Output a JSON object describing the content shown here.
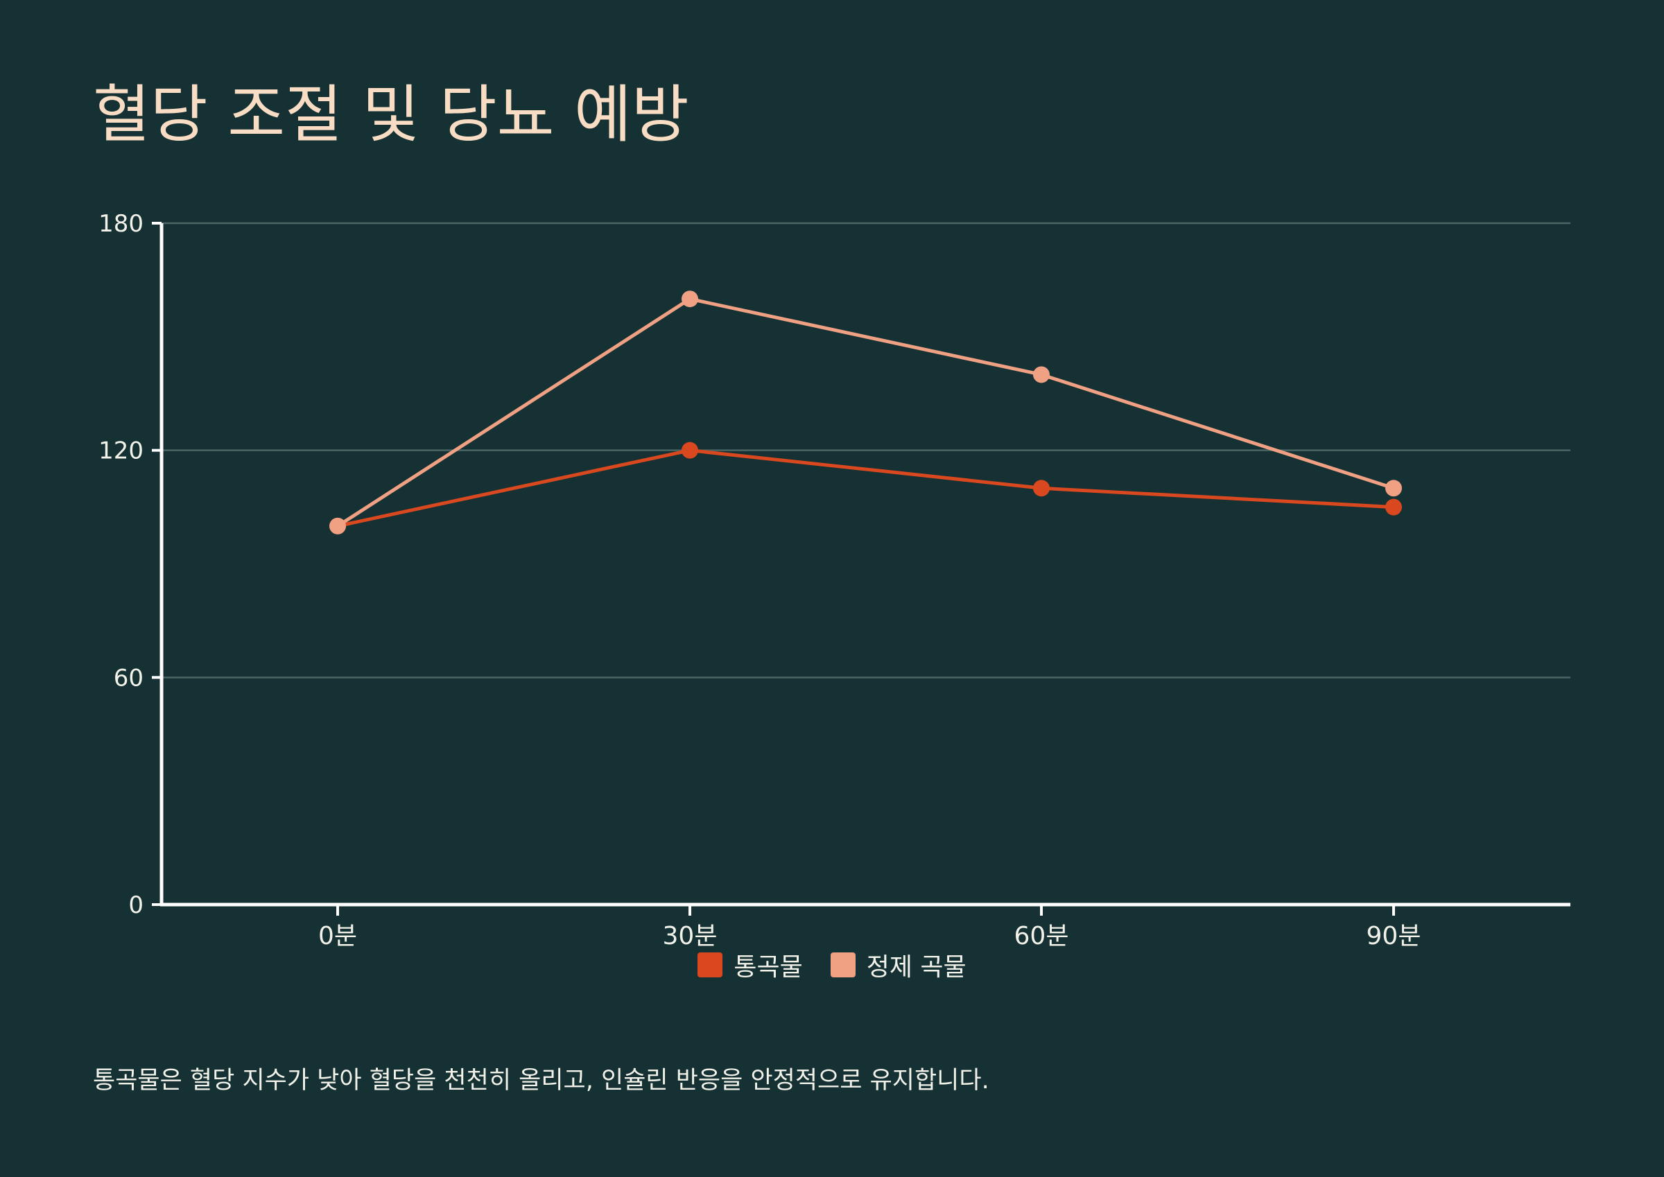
{
  "title": "혈당 조절 및 당뇨 예방",
  "caption": "통곡물은 혈당 지수가 낮아 혈당을 천천히 올리고, 인슐린 반응을 안정적으로 유지합니다.",
  "colors": {
    "background": "#153133",
    "whole_grain": "#d9481f",
    "refined_grain": "#f0a083",
    "axis": "#ffffff",
    "grid": "#4a6563",
    "title": "#f9dcc4"
  },
  "chart_data": {
    "type": "line",
    "categories": [
      "0분",
      "30분",
      "60분",
      "90분"
    ],
    "series": [
      {
        "name": "통곡물",
        "values": [
          100,
          120,
          110,
          105
        ],
        "color": "#d9481f"
      },
      {
        "name": "정제 곡물",
        "values": [
          100,
          160,
          140,
          110
        ],
        "color": "#f0a083"
      }
    ],
    "ylim": [
      0,
      180
    ],
    "yticks": [
      0,
      60,
      120,
      180
    ],
    "grid": true,
    "legend_position": "bottom-center",
    "xlabel": "",
    "ylabel": ""
  }
}
